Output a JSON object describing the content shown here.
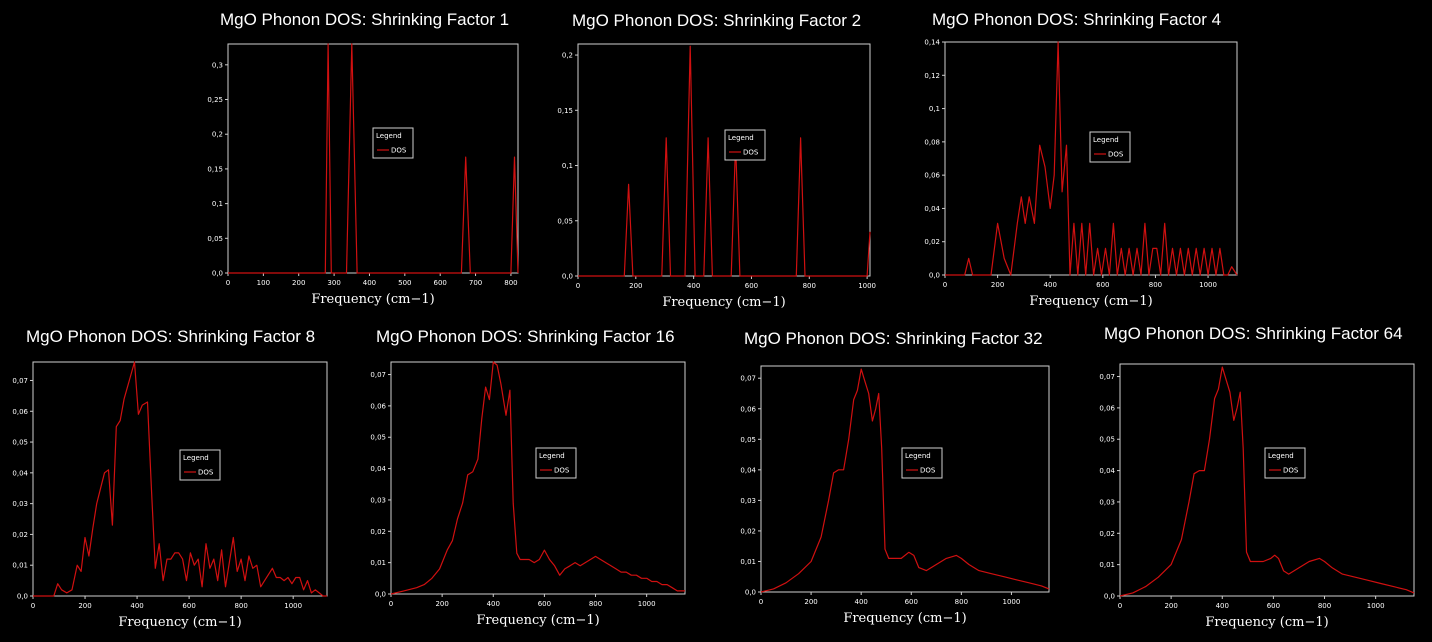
{
  "chart_data": [
    {
      "type": "line",
      "title": "MgO Phonon DOS: Shrinking Factor 1",
      "xlabel": "Frequency (cm−1)",
      "ylabel": "",
      "xlim": [
        0,
        820
      ],
      "ylim": [
        0,
        0.33
      ],
      "xticks": [
        0,
        100,
        200,
        300,
        400,
        500,
        600,
        700,
        800
      ],
      "yticks": [
        0,
        0.05,
        0.1,
        0.15,
        0.2,
        0.25,
        0.3
      ],
      "ytick_labels": [
        "0,0",
        "0,05",
        "0,1",
        "0,15",
        "0,2",
        "0,25",
        "0,3"
      ],
      "legend": {
        "title": "Legend",
        "entries": [
          "DOS"
        ]
      },
      "series": [
        {
          "name": "DOS",
          "color": "#d01010",
          "x": [
            0,
            275,
            283,
            292,
            335,
            350,
            365,
            660,
            672,
            685,
            800,
            810,
            820
          ],
          "y": [
            0,
            0,
            0.33,
            0,
            0,
            0.33,
            0,
            0,
            0.167,
            0,
            0,
            0.167,
            0
          ]
        }
      ]
    },
    {
      "type": "line",
      "title": "MgO Phonon DOS: Shrinking Factor 2",
      "xlabel": "Frequency (cm−1)",
      "ylabel": "",
      "xlim": [
        0,
        1010
      ],
      "ylim": [
        0,
        0.21
      ],
      "xticks": [
        0,
        200,
        400,
        600,
        800,
        1000
      ],
      "yticks": [
        0,
        0.05,
        0.1,
        0.15,
        0.2
      ],
      "ytick_labels": [
        "0,0",
        "0,05",
        "0,1",
        "0,15",
        "0,2"
      ],
      "legend": {
        "title": "Legend",
        "entries": [
          "DOS"
        ]
      },
      "series": [
        {
          "name": "DOS",
          "color": "#d01010",
          "x": [
            0,
            160,
            175,
            190,
            290,
            305,
            320,
            370,
            388,
            405,
            435,
            450,
            465,
            530,
            545,
            560,
            755,
            770,
            785,
            1000,
            1010
          ],
          "y": [
            0,
            0,
            0.083,
            0,
            0,
            0.125,
            0,
            0,
            0.208,
            0,
            0,
            0.125,
            0,
            0,
            0.12,
            0,
            0,
            0.125,
            0,
            0,
            0.04
          ]
        }
      ]
    },
    {
      "type": "line",
      "title": "MgO Phonon DOS: Shrinking Factor 4",
      "xlabel": "Frequency (cm−1)",
      "ylabel": "",
      "xlim": [
        0,
        1110
      ],
      "ylim": [
        0,
        0.14
      ],
      "xticks": [
        0,
        200,
        400,
        600,
        800,
        1000
      ],
      "yticks": [
        0,
        0.02,
        0.04,
        0.06,
        0.08,
        0.1,
        0.12,
        0.14
      ],
      "ytick_labels": [
        "0,0",
        "0,02",
        "0,04",
        "0,06",
        "0,08",
        "0,1",
        "0,12",
        "0,14"
      ],
      "legend": {
        "title": "Legend",
        "entries": [
          "DOS"
        ]
      },
      "series": [
        {
          "name": "DOS",
          "color": "#d01010",
          "x": [
            0,
            75,
            90,
            105,
            175,
            200,
            225,
            250,
            275,
            290,
            305,
            320,
            340,
            360,
            380,
            400,
            415,
            430,
            445,
            462,
            475,
            490,
            505,
            520,
            535,
            550,
            565,
            580,
            595,
            610,
            625,
            640,
            655,
            670,
            685,
            700,
            715,
            730,
            745,
            760,
            775,
            790,
            805,
            820,
            835,
            850,
            865,
            880,
            895,
            910,
            925,
            940,
            955,
            970,
            985,
            1000,
            1015,
            1030,
            1045,
            1060,
            1075,
            1090,
            1110
          ],
          "y": [
            0,
            0,
            0.01,
            0,
            0,
            0.031,
            0.01,
            0,
            0.031,
            0.047,
            0.031,
            0.047,
            0.031,
            0.078,
            0.065,
            0.04,
            0.06,
            0.14,
            0.05,
            0.078,
            0,
            0.031,
            0,
            0.031,
            0,
            0.031,
            0,
            0.016,
            0,
            0.016,
            0,
            0.031,
            0,
            0.016,
            0,
            0.016,
            0,
            0.016,
            0,
            0.031,
            0,
            0.016,
            0.016,
            0,
            0.031,
            0,
            0.016,
            0,
            0.016,
            0,
            0.016,
            0,
            0.016,
            0,
            0.016,
            0,
            0.016,
            0,
            0.016,
            0,
            0,
            0.005,
            0
          ]
        }
      ]
    },
    {
      "type": "line",
      "title": "MgO Phonon DOS: Shrinking Factor 8",
      "xlabel": "Frequency (cm−1)",
      "ylabel": "",
      "xlim": [
        0,
        1130
      ],
      "ylim": [
        0,
        0.076
      ],
      "xticks": [
        0,
        200,
        400,
        600,
        800,
        1000
      ],
      "yticks": [
        0,
        0.01,
        0.02,
        0.03,
        0.04,
        0.05,
        0.06,
        0.07
      ],
      "ytick_labels": [
        "0,0",
        "0,01",
        "0,02",
        "0,03",
        "0,04",
        "0,05",
        "0,06",
        "0,07"
      ],
      "legend": {
        "title": "Legend",
        "entries": [
          "DOS"
        ]
      },
      "series": [
        {
          "name": "DOS",
          "color": "#d01010",
          "x": [
            0,
            80,
            95,
            110,
            130,
            150,
            170,
            185,
            200,
            215,
            230,
            245,
            260,
            275,
            290,
            305,
            320,
            335,
            350,
            370,
            390,
            405,
            420,
            440,
            455,
            470,
            485,
            500,
            515,
            530,
            545,
            560,
            575,
            590,
            605,
            620,
            635,
            650,
            665,
            680,
            695,
            710,
            725,
            740,
            755,
            770,
            785,
            800,
            815,
            830,
            845,
            860,
            875,
            890,
            905,
            920,
            935,
            950,
            965,
            980,
            995,
            1010,
            1025,
            1040,
            1055,
            1070,
            1085,
            1100,
            1115,
            1130
          ],
          "y": [
            0,
            0,
            0.004,
            0.002,
            0.001,
            0.002,
            0.01,
            0.008,
            0.019,
            0.013,
            0.022,
            0.03,
            0.035,
            0.04,
            0.041,
            0.023,
            0.055,
            0.057,
            0.064,
            0.07,
            0.076,
            0.059,
            0.062,
            0.063,
            0.035,
            0.009,
            0.017,
            0.005,
            0.012,
            0.012,
            0.014,
            0.014,
            0.012,
            0.005,
            0.014,
            0.01,
            0.012,
            0.003,
            0.017,
            0.009,
            0.012,
            0.005,
            0.015,
            0.003,
            0.011,
            0.019,
            0.008,
            0.012,
            0.005,
            0.013,
            0.009,
            0.01,
            0.003,
            0.005,
            0.007,
            0.009,
            0.006,
            0.006,
            0.005,
            0.006,
            0.004,
            0.006,
            0.006,
            0.002,
            0.005,
            0.001,
            0.002,
            0.001,
            0,
            0
          ]
        }
      ]
    },
    {
      "type": "line",
      "title": "MgO Phonon DOS: Shrinking Factor 16",
      "xlabel": "Frequency (cm−1)",
      "ylabel": "",
      "xlim": [
        0,
        1150
      ],
      "ylim": [
        0,
        0.074
      ],
      "xticks": [
        0,
        200,
        400,
        600,
        800,
        1000
      ],
      "yticks": [
        0,
        0.01,
        0.02,
        0.03,
        0.04,
        0.05,
        0.06,
        0.07
      ],
      "ytick_labels": [
        "0,0",
        "0,01",
        "0,02",
        "0,03",
        "0,04",
        "0,05",
        "0,06",
        "0,07"
      ],
      "legend": {
        "title": "Legend",
        "entries": [
          "DOS"
        ]
      },
      "series": [
        {
          "name": "DOS",
          "color": "#d01010",
          "x": [
            0,
            50,
            100,
            130,
            160,
            190,
            220,
            240,
            260,
            280,
            300,
            320,
            340,
            355,
            370,
            385,
            400,
            415,
            430,
            450,
            465,
            478,
            492,
            505,
            520,
            540,
            560,
            580,
            600,
            620,
            640,
            660,
            680,
            700,
            720,
            740,
            760,
            780,
            800,
            820,
            840,
            860,
            880,
            900,
            920,
            940,
            960,
            980,
            1000,
            1020,
            1040,
            1060,
            1080,
            1100,
            1120,
            1150
          ],
          "y": [
            0,
            0.001,
            0.002,
            0.003,
            0.005,
            0.008,
            0.014,
            0.017,
            0.024,
            0.029,
            0.038,
            0.039,
            0.043,
            0.056,
            0.066,
            0.062,
            0.074,
            0.073,
            0.067,
            0.057,
            0.065,
            0.029,
            0.013,
            0.011,
            0.011,
            0.011,
            0.01,
            0.011,
            0.014,
            0.011,
            0.009,
            0.006,
            0.008,
            0.009,
            0.01,
            0.009,
            0.01,
            0.011,
            0.012,
            0.011,
            0.01,
            0.009,
            0.008,
            0.007,
            0.007,
            0.006,
            0.006,
            0.005,
            0.005,
            0.004,
            0.004,
            0.003,
            0.003,
            0.002,
            0.001,
            0.001
          ]
        }
      ]
    },
    {
      "type": "line",
      "title": "MgO Phonon DOS: Shrinking Factor 32",
      "xlabel": "Frequency (cm−1)",
      "ylabel": "",
      "xlim": [
        0,
        1150
      ],
      "ylim": [
        0,
        0.074
      ],
      "xticks": [
        0,
        200,
        400,
        600,
        800,
        1000
      ],
      "yticks": [
        0,
        0.01,
        0.02,
        0.03,
        0.04,
        0.05,
        0.06,
        0.07
      ],
      "ytick_labels": [
        "0,0",
        "0,01",
        "0,02",
        "0,03",
        "0,04",
        "0,05",
        "0,06",
        "0,07"
      ],
      "legend": {
        "title": "Legend",
        "entries": [
          "DOS"
        ]
      },
      "series": [
        {
          "name": "DOS",
          "color": "#d01010",
          "x": [
            0,
            50,
            100,
            150,
            200,
            240,
            270,
            290,
            310,
            330,
            350,
            370,
            385,
            400,
            415,
            430,
            445,
            458,
            470,
            482,
            495,
            510,
            530,
            560,
            590,
            610,
            630,
            660,
            700,
            740,
            780,
            800,
            830,
            870,
            920,
            970,
            1020,
            1070,
            1120,
            1150
          ],
          "y": [
            0,
            0.001,
            0.003,
            0.006,
            0.01,
            0.018,
            0.03,
            0.039,
            0.04,
            0.04,
            0.05,
            0.063,
            0.066,
            0.073,
            0.069,
            0.065,
            0.056,
            0.06,
            0.065,
            0.047,
            0.014,
            0.011,
            0.011,
            0.011,
            0.013,
            0.012,
            0.008,
            0.007,
            0.009,
            0.011,
            0.012,
            0.011,
            0.009,
            0.007,
            0.006,
            0.005,
            0.004,
            0.003,
            0.002,
            0.001
          ]
        }
      ]
    },
    {
      "type": "line",
      "title": "MgO Phonon DOS: Shrinking Factor 64",
      "xlabel": "Frequency (cm−1)",
      "ylabel": "",
      "xlim": [
        0,
        1150
      ],
      "ylim": [
        0,
        0.074
      ],
      "xticks": [
        0,
        200,
        400,
        600,
        800,
        1000
      ],
      "yticks": [
        0,
        0.01,
        0.02,
        0.03,
        0.04,
        0.05,
        0.06,
        0.07
      ],
      "ytick_labels": [
        "0,0",
        "0,01",
        "0,02",
        "0,03",
        "0,04",
        "0,05",
        "0,06",
        "0,07"
      ],
      "legend": {
        "title": "Legend",
        "entries": [
          "DOS"
        ]
      },
      "series": [
        {
          "name": "DOS",
          "color": "#d01010",
          "x": [
            0,
            50,
            100,
            150,
            200,
            240,
            270,
            290,
            310,
            330,
            350,
            370,
            385,
            400,
            415,
            430,
            445,
            458,
            470,
            482,
            495,
            510,
            530,
            560,
            590,
            605,
            620,
            640,
            660,
            700,
            740,
            780,
            800,
            830,
            870,
            920,
            970,
            1020,
            1070,
            1120,
            1150
          ],
          "y": [
            0,
            0.001,
            0.003,
            0.006,
            0.01,
            0.018,
            0.03,
            0.039,
            0.04,
            0.04,
            0.05,
            0.063,
            0.066,
            0.073,
            0.069,
            0.065,
            0.056,
            0.06,
            0.065,
            0.047,
            0.014,
            0.011,
            0.011,
            0.011,
            0.012,
            0.013,
            0.012,
            0.008,
            0.007,
            0.009,
            0.011,
            0.012,
            0.011,
            0.009,
            0.007,
            0.006,
            0.005,
            0.004,
            0.003,
            0.002,
            0.001
          ]
        }
      ]
    }
  ]
}
